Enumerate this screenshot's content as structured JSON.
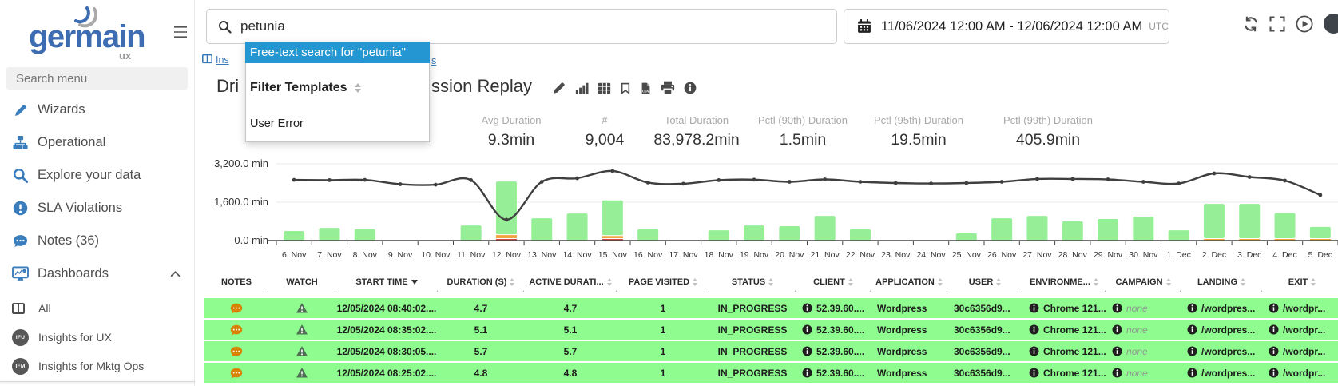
{
  "sidebar": {
    "logo": {
      "text": "germain",
      "sub": "ux"
    },
    "search_placeholder": "Search menu",
    "items": [
      {
        "label": "Wizards",
        "icon": "pen"
      },
      {
        "label": "Operational",
        "icon": "sitemap"
      },
      {
        "label": "Explore your data",
        "icon": "search"
      },
      {
        "label": "SLA Violations",
        "icon": "alert"
      },
      {
        "label": "Notes (36)",
        "icon": "comments"
      },
      {
        "label": "Dashboards",
        "icon": "dashboards",
        "expanded": true
      }
    ],
    "dashboard_items": [
      {
        "label": "All",
        "icon": "columns"
      },
      {
        "label": "Insights for UX",
        "badge": "IFU"
      },
      {
        "label": "Insights for Mktg Ops",
        "badge": "IFM"
      }
    ]
  },
  "topbar": {
    "search_value": "petunia",
    "date_range": "11/06/2024 12:00 AM - 12/06/2024 12:00 AM",
    "timezone": "UTC",
    "icons": [
      "refresh",
      "fullscreen",
      "play",
      "avatar"
    ]
  },
  "breadcrumb": {
    "prefix": "Ins",
    "suffix": "s"
  },
  "page": {
    "title_prefix": "Dri",
    "title_suffix": "ssion Replay",
    "action_icons": [
      "pen",
      "chart-bars",
      "table-grid",
      "bookmark",
      "file-csv",
      "printer",
      "info"
    ]
  },
  "search_dropdown": {
    "free_text_item": "Free-text search for \"petunia\"",
    "section_header": "Filter Templates",
    "items": [
      "User Error"
    ]
  },
  "stats": [
    {
      "label": "Avg Duration",
      "value": "9.3min"
    },
    {
      "label": "#",
      "value": "9,004"
    },
    {
      "label": "Total Duration",
      "value": "83,978.2min"
    },
    {
      "label": "Pctl (90th) Duration",
      "value": "1.5min"
    },
    {
      "label": "Pctl (95th) Duration",
      "value": "19.5min"
    },
    {
      "label": "Pctl (99th) Duration",
      "value": "405.9min"
    }
  ],
  "chart_data": {
    "type": "bar+line",
    "categories": [
      "6. Nov",
      "7. Nov",
      "8. Nov",
      "9. Nov",
      "10. Nov",
      "11. Nov",
      "12. Nov",
      "13. Nov",
      "14. Nov",
      "15. Nov",
      "16. Nov",
      "17. Nov",
      "18. Nov",
      "19. Nov",
      "20. Nov",
      "21. Nov",
      "22. Nov",
      "23. Nov",
      "24. Nov",
      "25. Nov",
      "26. Nov",
      "27. Nov",
      "28. Nov",
      "29. Nov",
      "30. Nov",
      "1. Dec",
      "2. Dec",
      "3. Dec",
      "4. Dec",
      "5. Dec"
    ],
    "series": [
      {
        "name": "duration-green",
        "type": "bar",
        "color": "#96ef96",
        "values": [
          400,
          530,
          470,
          0,
          0,
          630,
          2200,
          930,
          1130,
          1450,
          470,
          0,
          430,
          630,
          600,
          1030,
          470,
          0,
          0,
          300,
          930,
          1030,
          800,
          900,
          1000,
          430,
          1430,
          1430,
          1050,
          470
        ]
      },
      {
        "name": "duration-orange",
        "type": "bar",
        "color": "#f2a33c",
        "values": [
          0,
          0,
          0,
          0,
          0,
          0,
          130,
          0,
          0,
          90,
          0,
          0,
          0,
          0,
          0,
          0,
          0,
          0,
          0,
          0,
          0,
          0,
          0,
          0,
          0,
          0,
          40,
          40,
          50,
          30
        ]
      },
      {
        "name": "duration-red",
        "type": "bar",
        "color": "#cc4b4b",
        "values": [
          0,
          0,
          0,
          0,
          0,
          0,
          60,
          0,
          0,
          50,
          0,
          0,
          0,
          0,
          0,
          0,
          0,
          0,
          0,
          0,
          0,
          0,
          0,
          0,
          0,
          0,
          0,
          0,
          0,
          0
        ]
      },
      {
        "name": "trend-line",
        "type": "line",
        "color": "#3f3f3f",
        "values": [
          2530,
          2520,
          2530,
          2350,
          2330,
          2520,
          870,
          2450,
          2600,
          2900,
          2420,
          2370,
          2520,
          2540,
          2450,
          2550,
          2450,
          2400,
          2380,
          2400,
          2450,
          2570,
          2570,
          2550,
          2450,
          2380,
          2800,
          2650,
          2500,
          1900
        ]
      }
    ],
    "yticks": [
      "3,200.0 min",
      "1,600.0 min",
      "0.0 min"
    ],
    "ylim": [
      0,
      3200
    ],
    "unit": "min",
    "grid": true,
    "legend": false
  },
  "table": {
    "columns": [
      {
        "label": "NOTES",
        "key": "notes",
        "type": "notes-icon"
      },
      {
        "label": "WATCH",
        "key": "watch",
        "type": "watch-icon"
      },
      {
        "label": "START TIME",
        "key": "start_time",
        "sort": "desc"
      },
      {
        "label": "DURATION (S)",
        "key": "duration",
        "sort": "both"
      },
      {
        "label": "ACTIVE DURATI...",
        "key": "active_duration",
        "sort": "both"
      },
      {
        "label": "PAGE VISITED",
        "key": "page_visited",
        "sort": "both"
      },
      {
        "label": "STATUS",
        "key": "status",
        "sort": "both"
      },
      {
        "label": "CLIENT",
        "key": "client",
        "sort": "both",
        "info": true
      },
      {
        "label": "APPLICATION",
        "key": "application",
        "sort": "both"
      },
      {
        "label": "USER",
        "key": "user",
        "sort": "both"
      },
      {
        "label": "ENVIRONME...",
        "key": "environment",
        "sort": "both",
        "info": true
      },
      {
        "label": "CAMPAIGN",
        "key": "campaign",
        "sort": "both",
        "info": true
      },
      {
        "label": "LANDING",
        "key": "landing",
        "sort": "both",
        "info": true
      },
      {
        "label": "EXIT",
        "key": "exit",
        "sort": "both",
        "info": true
      }
    ],
    "rows": [
      {
        "notes": true,
        "watch": true,
        "start_time": "12/05/2024 08:40:02....",
        "duration": "4.7",
        "active_duration": "4.7",
        "page_visited": "1",
        "status": "IN_PROGRESS",
        "client": "52.39.60....",
        "application": "Wordpress",
        "user": "30c6356d9...",
        "environment": "Chrome 121....",
        "campaign": "none",
        "landing": "/wordpres...",
        "exit": "/wordpr..."
      },
      {
        "notes": true,
        "watch": true,
        "start_time": "12/05/2024 08:35:02....",
        "duration": "5.1",
        "active_duration": "5.1",
        "page_visited": "1",
        "status": "IN_PROGRESS",
        "client": "52.39.60....",
        "application": "Wordpress",
        "user": "30c6356d9...",
        "environment": "Chrome 121....",
        "campaign": "none",
        "landing": "/wordpres...",
        "exit": "/wordpr..."
      },
      {
        "notes": true,
        "watch": true,
        "start_time": "12/05/2024 08:30:05....",
        "duration": "5.7",
        "active_duration": "5.7",
        "page_visited": "1",
        "status": "IN_PROGRESS",
        "client": "52.39.60....",
        "application": "Wordpress",
        "user": "30c6356d9...",
        "environment": "Chrome 121....",
        "campaign": "none",
        "landing": "/wordpres...",
        "exit": "/wordpr..."
      },
      {
        "notes": true,
        "watch": true,
        "start_time": "12/05/2024 08:25:02....",
        "duration": "4.8",
        "active_duration": "4.8",
        "page_visited": "1",
        "status": "IN_PROGRESS",
        "client": "52.39.60....",
        "application": "Wordpress",
        "user": "30c6356d9...",
        "environment": "Chrome 121....",
        "campaign": "none",
        "landing": "/wordpres...",
        "exit": "/wordpr..."
      }
    ]
  },
  "colors": {
    "accent_blue": "#3a7dbd",
    "logo_blue": "#3d6cb3",
    "highlight_blue": "#2496d2",
    "row_green": "#8efc8e",
    "bar_green": "#96ef96",
    "bar_orange": "#f2a33c",
    "bar_red": "#cc4b4b",
    "notes_orange": "#d98200",
    "watch_green": "#4f6e54"
  }
}
